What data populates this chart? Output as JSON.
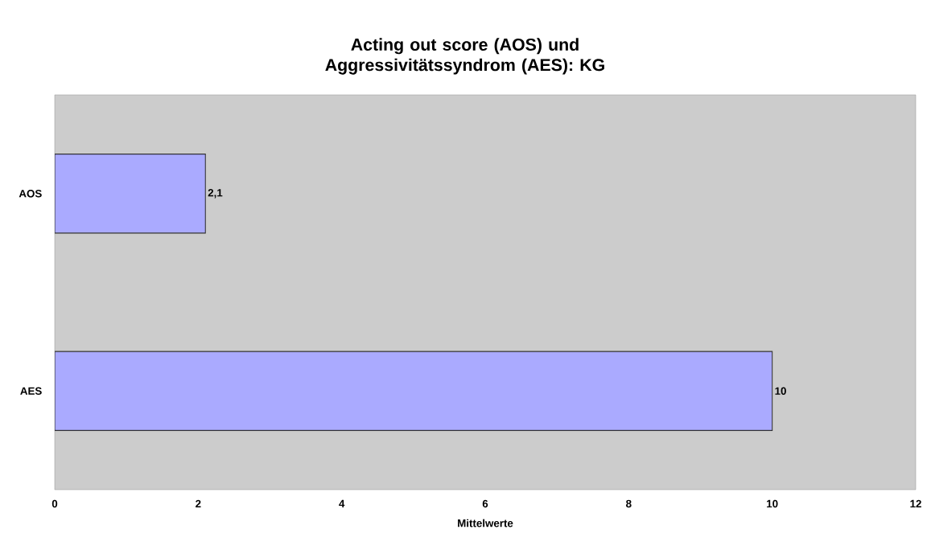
{
  "chart_data": {
    "type": "bar",
    "orientation": "horizontal",
    "title": "Acting out score (AOS) und Aggressivitätssyndrom (AES): KG",
    "xlabel": "Mittelwerte",
    "categories": [
      "AOS",
      "AES"
    ],
    "values": [
      2.1,
      10
    ],
    "value_labels": [
      "2,1",
      "10"
    ],
    "color": "#aaaaff",
    "xlim": [
      0,
      12
    ],
    "xticks": [
      0,
      2,
      4,
      6,
      8,
      10,
      12
    ]
  }
}
